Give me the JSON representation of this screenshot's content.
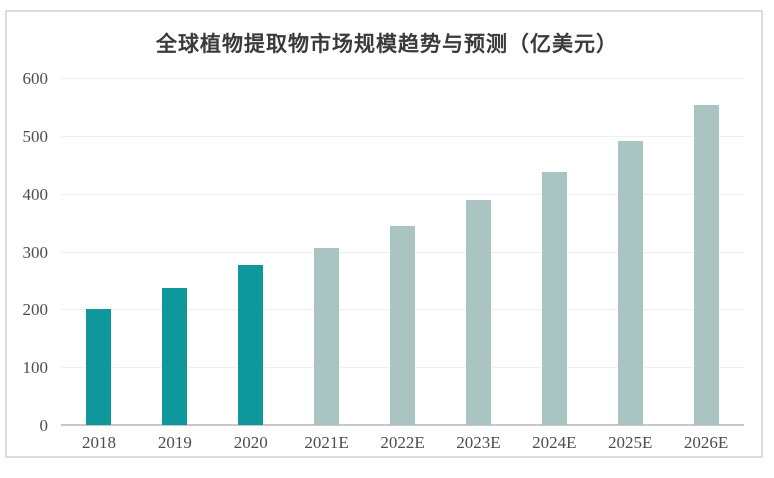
{
  "title": "全球植物提取物市场规模趋势与预测（亿美元）",
  "colors": {
    "historical_bar": "#0E989B",
    "forecast_bar": "#A9C4C1",
    "gridline": "#EFEFEF",
    "axis_line": "#C8C8C8",
    "axis_label_text": "#4D4D4D",
    "title_text": "#3A3A3A",
    "frame_border": "#DBDBDB",
    "background": "#FFFFFF"
  },
  "chart_data": {
    "type": "bar",
    "title": "全球植物提取物市场规模趋势与预测（亿美元）",
    "xlabel": "",
    "ylabel": "",
    "unit": "亿美元",
    "categories": [
      "2018",
      "2019",
      "2020",
      "2021E",
      "2022E",
      "2023E",
      "2024E",
      "2025E",
      "2026E"
    ],
    "values": [
      200,
      237,
      276,
      306,
      345,
      389,
      437,
      492,
      554
    ],
    "bar_styles": [
      "historical",
      "historical",
      "historical",
      "forecast",
      "forecast",
      "forecast",
      "forecast",
      "forecast",
      "forecast"
    ],
    "ylim": [
      0,
      600
    ],
    "yticks": [
      0,
      100,
      200,
      300,
      400,
      500,
      600
    ],
    "ytick_interval": 100,
    "grid": true,
    "legend": "none"
  }
}
